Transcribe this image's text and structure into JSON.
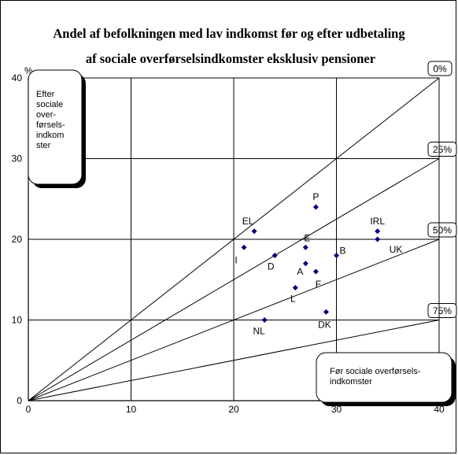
{
  "chart_data": {
    "type": "scatter",
    "title_lines": [
      "Andel af befolkningen med lav indkomst før og efter udbetaling",
      "af sociale overførselsindkomster eksklusiv pensioner"
    ],
    "y_unit": "%",
    "x_unit": "%",
    "xlim": [
      0,
      40
    ],
    "ylim": [
      0,
      40
    ],
    "x_ticks": [
      "0",
      "10",
      "20",
      "30",
      "40"
    ],
    "y_ticks": [
      "0",
      "10",
      "20",
      "30",
      "40"
    ],
    "grid": true,
    "marker_color": "#000080",
    "points": [
      {
        "label": "P",
        "x": 28,
        "y": 24
      },
      {
        "label": "EL",
        "x": 22,
        "y": 21
      },
      {
        "label": "IRL",
        "x": 34,
        "y": 21
      },
      {
        "label": "UK",
        "x": 34,
        "y": 20
      },
      {
        "label": "I",
        "x": 21,
        "y": 19
      },
      {
        "label": "E",
        "x": 27,
        "y": 19
      },
      {
        "label": "D",
        "x": 24,
        "y": 18
      },
      {
        "label": "B",
        "x": 30,
        "y": 18
      },
      {
        "label": "A",
        "x": 27,
        "y": 17
      },
      {
        "label": "F",
        "x": 28,
        "y": 16
      },
      {
        "label": "L",
        "x": 26,
        "y": 14
      },
      {
        "label": "DK",
        "x": 29,
        "y": 11
      },
      {
        "label": "NL",
        "x": 23,
        "y": 10
      }
    ],
    "reference_lines": [
      {
        "label": "0%",
        "reduction": 0
      },
      {
        "label": "25%",
        "reduction": 0.25
      },
      {
        "label": "50%",
        "reduction": 0.5
      },
      {
        "label": "75%",
        "reduction": 0.75
      }
    ],
    "y_axis_note": [
      "Efter",
      "sociale",
      "over-",
      "førsels-",
      "indkom",
      "ster"
    ],
    "x_axis_note": [
      "Før sociale overførsels-",
      "indkomster"
    ]
  }
}
